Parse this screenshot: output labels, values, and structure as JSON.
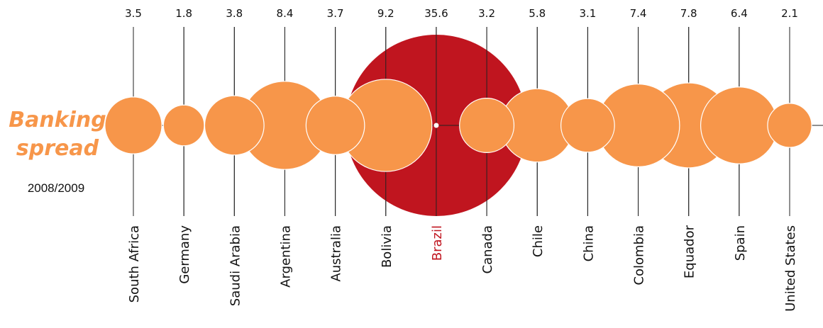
{
  "title": {
    "line1": "Banking",
    "line2": "spread"
  },
  "subtitle": "2008/2009",
  "colors": {
    "bubble": "#f7964a",
    "highlight": "#c0151f",
    "axis": "#222222",
    "label": "#111111"
  },
  "chart_data": {
    "type": "bubble",
    "title": "Banking spread",
    "subtitle": "2008/2009",
    "highlight": "Brazil",
    "categories": [
      "South Africa",
      "Germany",
      "Saudi Arabia",
      "Argentina",
      "Australia",
      "Bolivia",
      "Brazil",
      "Canada",
      "Chile",
      "China",
      "Colombia",
      "Equador",
      "Spain",
      "United States"
    ],
    "values": [
      3.5,
      1.8,
      3.8,
      8.4,
      3.7,
      9.2,
      35.6,
      3.2,
      5.8,
      3.1,
      7.4,
      7.8,
      6.4,
      2.1
    ],
    "value_labels": [
      "3.5",
      "1.8",
      "3.8",
      "8.4",
      "3.7",
      "9.2",
      "35.6",
      "3.2",
      "5.8",
      "3.1",
      "7.4",
      "7.8",
      "6.4",
      "2.1"
    ]
  }
}
